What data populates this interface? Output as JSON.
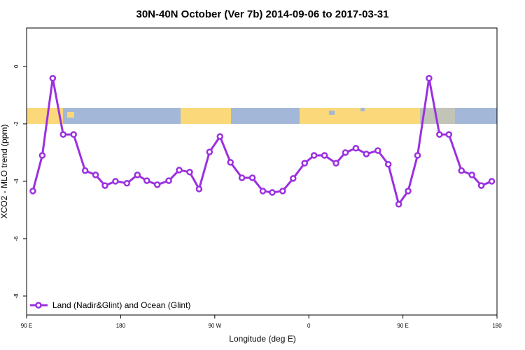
{
  "chart_data": {
    "type": "line",
    "title": "30N-40N October (Ver 7b)   2014-09-06 to 2017-03-31",
    "x_label": "Longitude (deg E)",
    "y_label": "XCO2 - MLO trend (ppm)",
    "xlim": [
      90,
      540
    ],
    "ylim": [
      -8.66,
      1.34
    ],
    "xticks": [
      {
        "value": 90,
        "label": "90 E"
      },
      180,
      {
        "value": 270,
        "label": "90 W"
      },
      {
        "value": 360,
        "label": "0"
      },
      {
        "value": 450,
        "label": "90 E"
      },
      {
        "value": 540,
        "label": "180"
      }
    ],
    "yticks": [
      0,
      -2,
      -4,
      -6,
      -8
    ],
    "legend": "bottom-left",
    "series": [
      {
        "name": "Land (Nadir&Glint) and Ocean (Glint)",
        "color": "#9b30e0",
        "x": [
          96,
          105,
          115,
          125,
          135,
          146,
          156,
          165,
          175,
          186,
          196,
          205,
          215,
          226,
          236,
          246,
          255,
          265,
          275,
          285,
          296,
          306,
          316,
          325,
          335,
          345,
          356,
          365,
          375,
          386,
          395,
          405,
          415,
          426,
          436,
          446,
          455,
          464,
          475,
          485,
          494,
          506,
          516,
          525,
          535
        ],
        "values": [
          -4.34,
          -3.1,
          -0.41,
          -2.37,
          -2.37,
          -3.63,
          -3.78,
          -4.15,
          -4.0,
          -4.07,
          -3.78,
          -3.98,
          -4.12,
          -3.98,
          -3.61,
          -3.68,
          -4.27,
          -2.98,
          -2.44,
          -3.34,
          -3.88,
          -3.88,
          -4.34,
          -4.39,
          -4.34,
          -3.9,
          -3.37,
          -3.1,
          -3.1,
          -3.37,
          -3.0,
          -2.85,
          -3.05,
          -2.93,
          -3.41,
          -4.8,
          -4.34,
          -3.1,
          -0.41,
          -2.37,
          -2.37,
          -3.63,
          -3.78,
          -4.15,
          -4.0
        ]
      }
    ]
  }
}
